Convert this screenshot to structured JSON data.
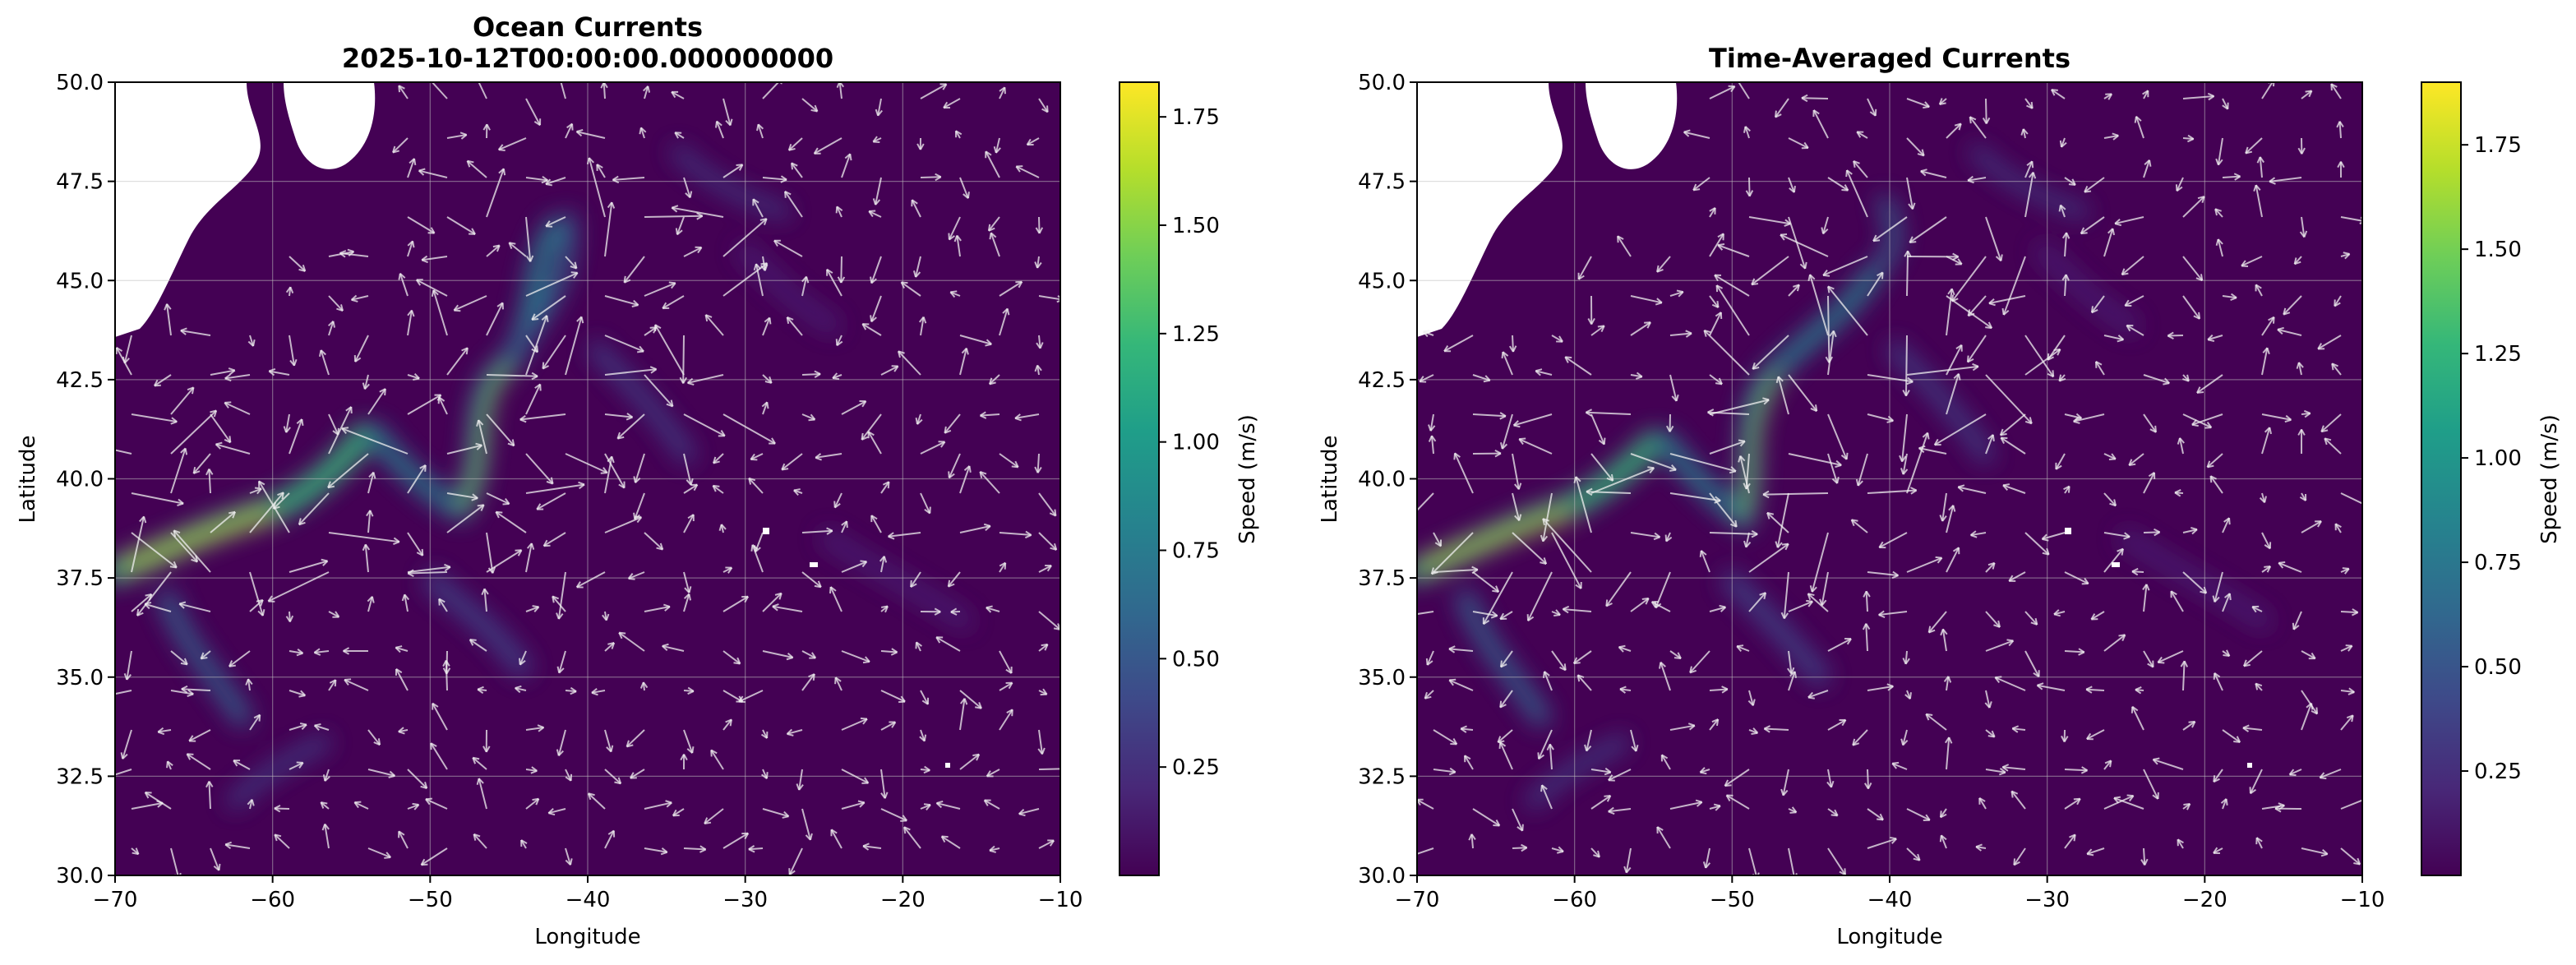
{
  "chart_data": [
    {
      "type": "heatmap",
      "title": "Ocean Currents",
      "subtitle": "2025-10-12T00:00:00.000000000",
      "xlabel": "Longitude",
      "ylabel": "Latitude",
      "xlim": [
        -70,
        -10
      ],
      "ylim": [
        30,
        50
      ],
      "xticks": [
        -70,
        -60,
        -50,
        -40,
        -30,
        -20,
        -10
      ],
      "xticklabels": [
        "−70",
        "−60",
        "−50",
        "−40",
        "−30",
        "−20",
        "−10"
      ],
      "yticks": [
        30,
        32.5,
        35,
        37.5,
        40,
        42.5,
        45,
        47.5,
        50
      ],
      "yticklabels": [
        "30.0",
        "32.5",
        "35.0",
        "37.5",
        "40.0",
        "42.5",
        "45.0",
        "47.5",
        "50.0"
      ],
      "grid": true,
      "overlay": "quiver",
      "colorbar": {
        "label": "Speed (m/s)",
        "colormap": "viridis",
        "range": [
          0,
          1.83
        ],
        "ticks": [
          0.25,
          0.5,
          0.75,
          1.0,
          1.25,
          1.5,
          1.75
        ],
        "ticklabels": [
          "0.25",
          "0.50",
          "0.75",
          "1.00",
          "1.25",
          "1.50",
          "1.75"
        ]
      }
    },
    {
      "type": "heatmap",
      "title": "Time-Averaged Currents",
      "subtitle": "",
      "xlabel": "Longitude",
      "ylabel": "Latitude",
      "xlim": [
        -70,
        -10
      ],
      "ylim": [
        30,
        50
      ],
      "xticks": [
        -70,
        -60,
        -50,
        -40,
        -30,
        -20,
        -10
      ],
      "xticklabels": [
        "−70",
        "−60",
        "−50",
        "−40",
        "−30",
        "−20",
        "−10"
      ],
      "yticks": [
        30,
        32.5,
        35,
        37.5,
        40,
        42.5,
        45,
        47.5,
        50
      ],
      "yticklabels": [
        "30.0",
        "32.5",
        "35.0",
        "37.5",
        "40.0",
        "42.5",
        "45.0",
        "47.5",
        "50.0"
      ],
      "grid": true,
      "overlay": "quiver",
      "colorbar": {
        "label": "Speed (m/s)",
        "colormap": "viridis",
        "range": [
          0,
          1.9
        ],
        "ticks": [
          0.25,
          0.5,
          0.75,
          1.0,
          1.25,
          1.5,
          1.75
        ],
        "ticklabels": [
          "0.25",
          "0.50",
          "0.75",
          "1.00",
          "1.25",
          "1.50",
          "1.75"
        ]
      }
    }
  ],
  "colors": {
    "background": "#ffffff",
    "axis": "#000000",
    "grid": "#bfbfbf",
    "arrow": "#f0f0f0",
    "land": "#ffffff",
    "viridis": [
      "#440154",
      "#482878",
      "#3e4989",
      "#31688e",
      "#26828e",
      "#1f9e89",
      "#35b779",
      "#6ece58",
      "#b5de2b",
      "#fde725"
    ]
  }
}
